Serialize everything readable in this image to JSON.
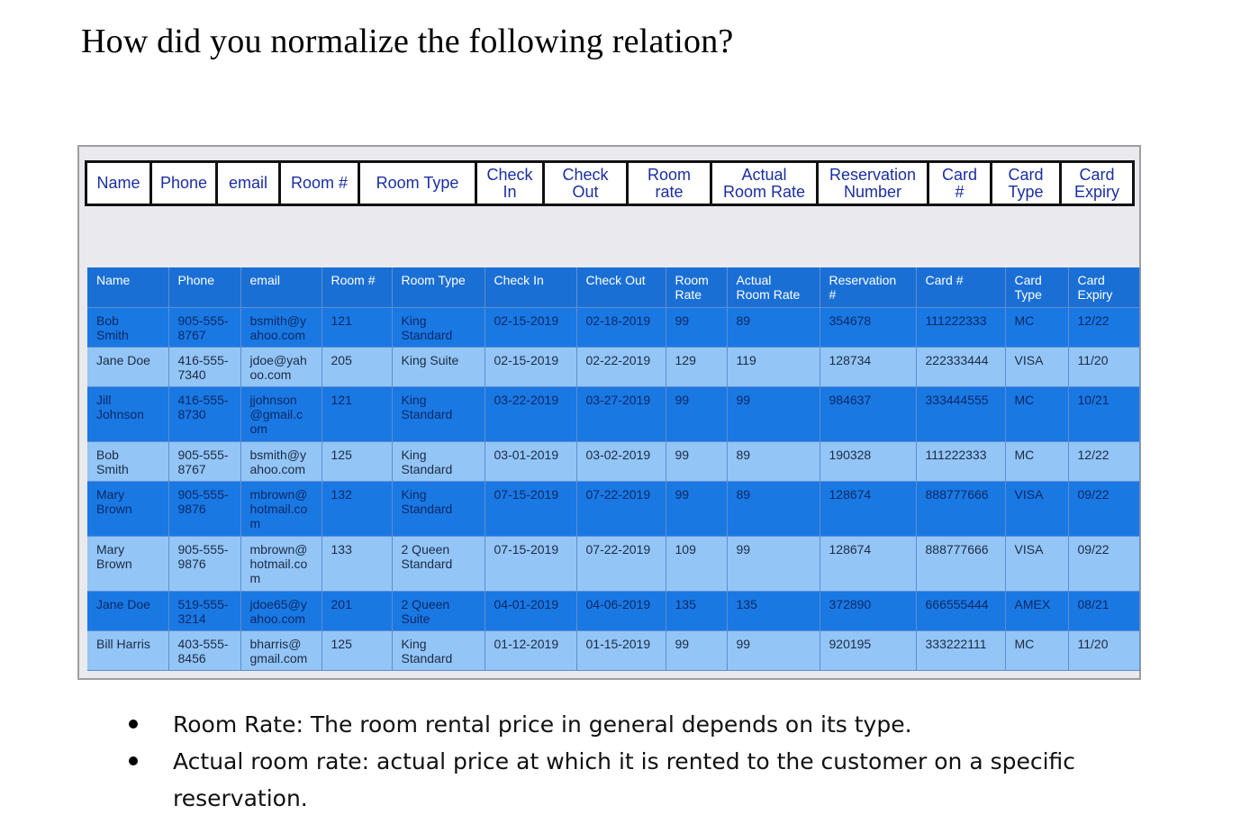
{
  "title": "How did you normalize the following relation?",
  "schema": {
    "columns": [
      "Name",
      "Phone",
      "email",
      "Room #",
      "Room Type",
      "Check\nIn",
      "Check\nOut",
      "Room\nrate",
      "Actual\nRoom Rate",
      "Reservation\nNumber",
      "Card\n#",
      "Card\nType",
      "Card\nExpiry"
    ]
  },
  "table": {
    "headers": [
      "Name",
      "Phone",
      "email",
      "Room #",
      "Room Type",
      "Check In",
      "Check Out",
      "Room\nRate",
      "Actual\nRoom Rate",
      "Reservation\n#",
      "Card #",
      "Card\nType",
      "Card\nExpiry"
    ],
    "rows": [
      [
        "Bob\nSmith",
        "905-555-\n8767",
        "bsmith@y\nahoo.com",
        "121",
        "King\nStandard",
        "02-15-2019",
        "02-18-2019",
        "99",
        "89",
        "354678",
        "111222333",
        "MC",
        "12/22"
      ],
      [
        "Jane Doe",
        "416-555-\n7340",
        "jdoe@yah\noo.com",
        "205",
        "King Suite",
        "02-15-2019",
        "02-22-2019",
        "129",
        "119",
        "128734",
        "222333444",
        "VISA",
        "11/20"
      ],
      [
        "Jill\nJohnson",
        "416-555-\n8730",
        "jjohnson\n@gmail.c\nom",
        "121",
        "King\nStandard",
        "03-22-2019",
        "03-27-2019",
        "99",
        "99",
        "984637",
        "333444555",
        "MC",
        "10/21"
      ],
      [
        "Bob\nSmith",
        "905-555-\n8767",
        "bsmith@y\nahoo.com",
        "125",
        "King\nStandard",
        "03-01-2019",
        "03-02-2019",
        "99",
        "89",
        "190328",
        "111222333",
        "MC",
        "12/22"
      ],
      [
        "Mary\nBrown",
        "905-555-\n9876",
        "mbrown@\nhotmail.co\nm",
        "132",
        "King\nStandard",
        "07-15-2019",
        "07-22-2019",
        "99",
        "89",
        "128674",
        "888777666",
        "VISA",
        "09/22"
      ],
      [
        "Mary\nBrown",
        "905-555-\n9876",
        "mbrown@\nhotmail.co\nm",
        "133",
        "2 Queen\nStandard",
        "07-15-2019",
        "07-22-2019",
        "109",
        "99",
        "128674",
        "888777666",
        "VISA",
        "09/22"
      ],
      [
        "Jane Doe",
        "519-555-\n3214",
        "jdoe65@y\nahoo.com",
        "201",
        "2 Queen\nSuite",
        "04-01-2019",
        "04-06-2019",
        "135",
        "135",
        "372890",
        "666555444",
        "AMEX",
        "08/21"
      ],
      [
        "Bill Harris",
        "403-555-\n8456",
        "bharris@\ngmail.com",
        "125",
        "King\nStandard",
        "01-12-2019",
        "01-15-2019",
        "99",
        "99",
        "920195",
        "333222111",
        "MC",
        "11/20"
      ]
    ]
  },
  "notes": [
    "Room Rate:  The room rental price in general depends on its type.",
    "Actual room rate:  actual price at which it is rented to the customer on a specific reservation."
  ]
}
